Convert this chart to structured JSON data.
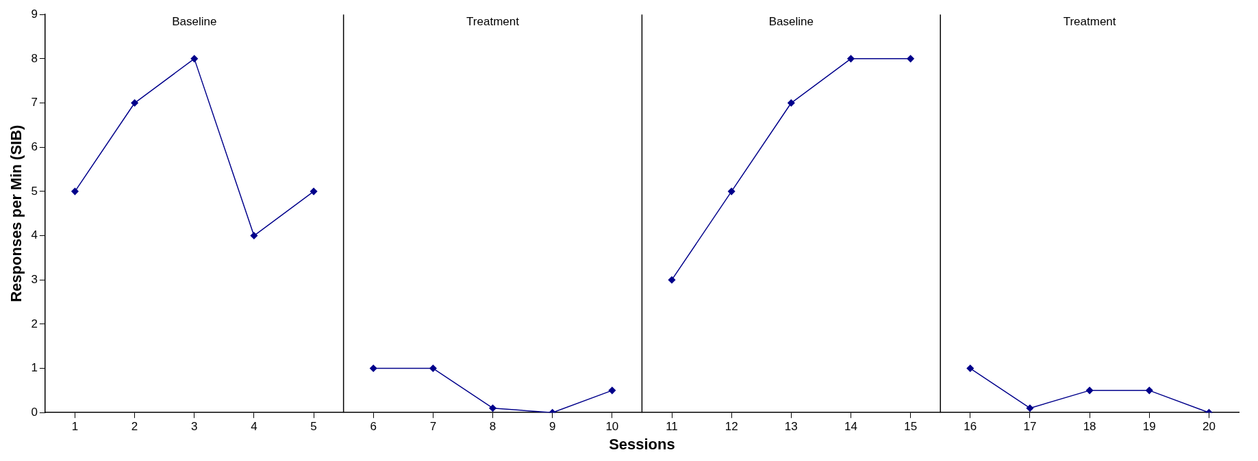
{
  "chart_data": {
    "type": "line",
    "xlabel": "Sessions",
    "ylabel": "Responses per Min (SIB)",
    "xlim": [
      0.5,
      20.5
    ],
    "xticks": [
      1,
      2,
      3,
      4,
      5,
      6,
      7,
      8,
      9,
      10,
      11,
      12,
      13,
      14,
      15,
      16,
      17,
      18,
      19,
      20
    ],
    "ylim": [
      0,
      9
    ],
    "yticks": [
      0,
      1,
      2,
      3,
      4,
      5,
      6,
      7,
      8,
      9
    ],
    "series": [
      {
        "color": "#00008b",
        "x": [
          1,
          2,
          3,
          4,
          5
        ],
        "values": [
          5,
          7,
          8,
          4,
          5
        ]
      },
      {
        "color": "#00008b",
        "x": [
          6,
          7,
          8,
          9,
          10
        ],
        "values": [
          1,
          1,
          0.1,
          0,
          0.5
        ]
      },
      {
        "color": "#00008b",
        "x": [
          11,
          12,
          13,
          14,
          15
        ],
        "values": [
          3,
          5,
          7,
          8,
          8
        ]
      },
      {
        "color": "#00008b",
        "x": [
          16,
          17,
          18,
          19,
          20
        ],
        "values": [
          1,
          0.1,
          0.5,
          0.5,
          0
        ]
      }
    ],
    "ref_lines": [
      {
        "axis": "x",
        "value": 5.5,
        "color": "#000000"
      },
      {
        "axis": "x",
        "value": 10.5,
        "color": "#000000"
      },
      {
        "axis": "x",
        "value": 15.5,
        "color": "#000000"
      }
    ],
    "annotations": [
      "Baseline",
      "Treatment",
      "Baseline",
      "Treatment"
    ],
    "grid": false,
    "legend": false,
    "marker": "diamond",
    "line_style": "solid"
  }
}
